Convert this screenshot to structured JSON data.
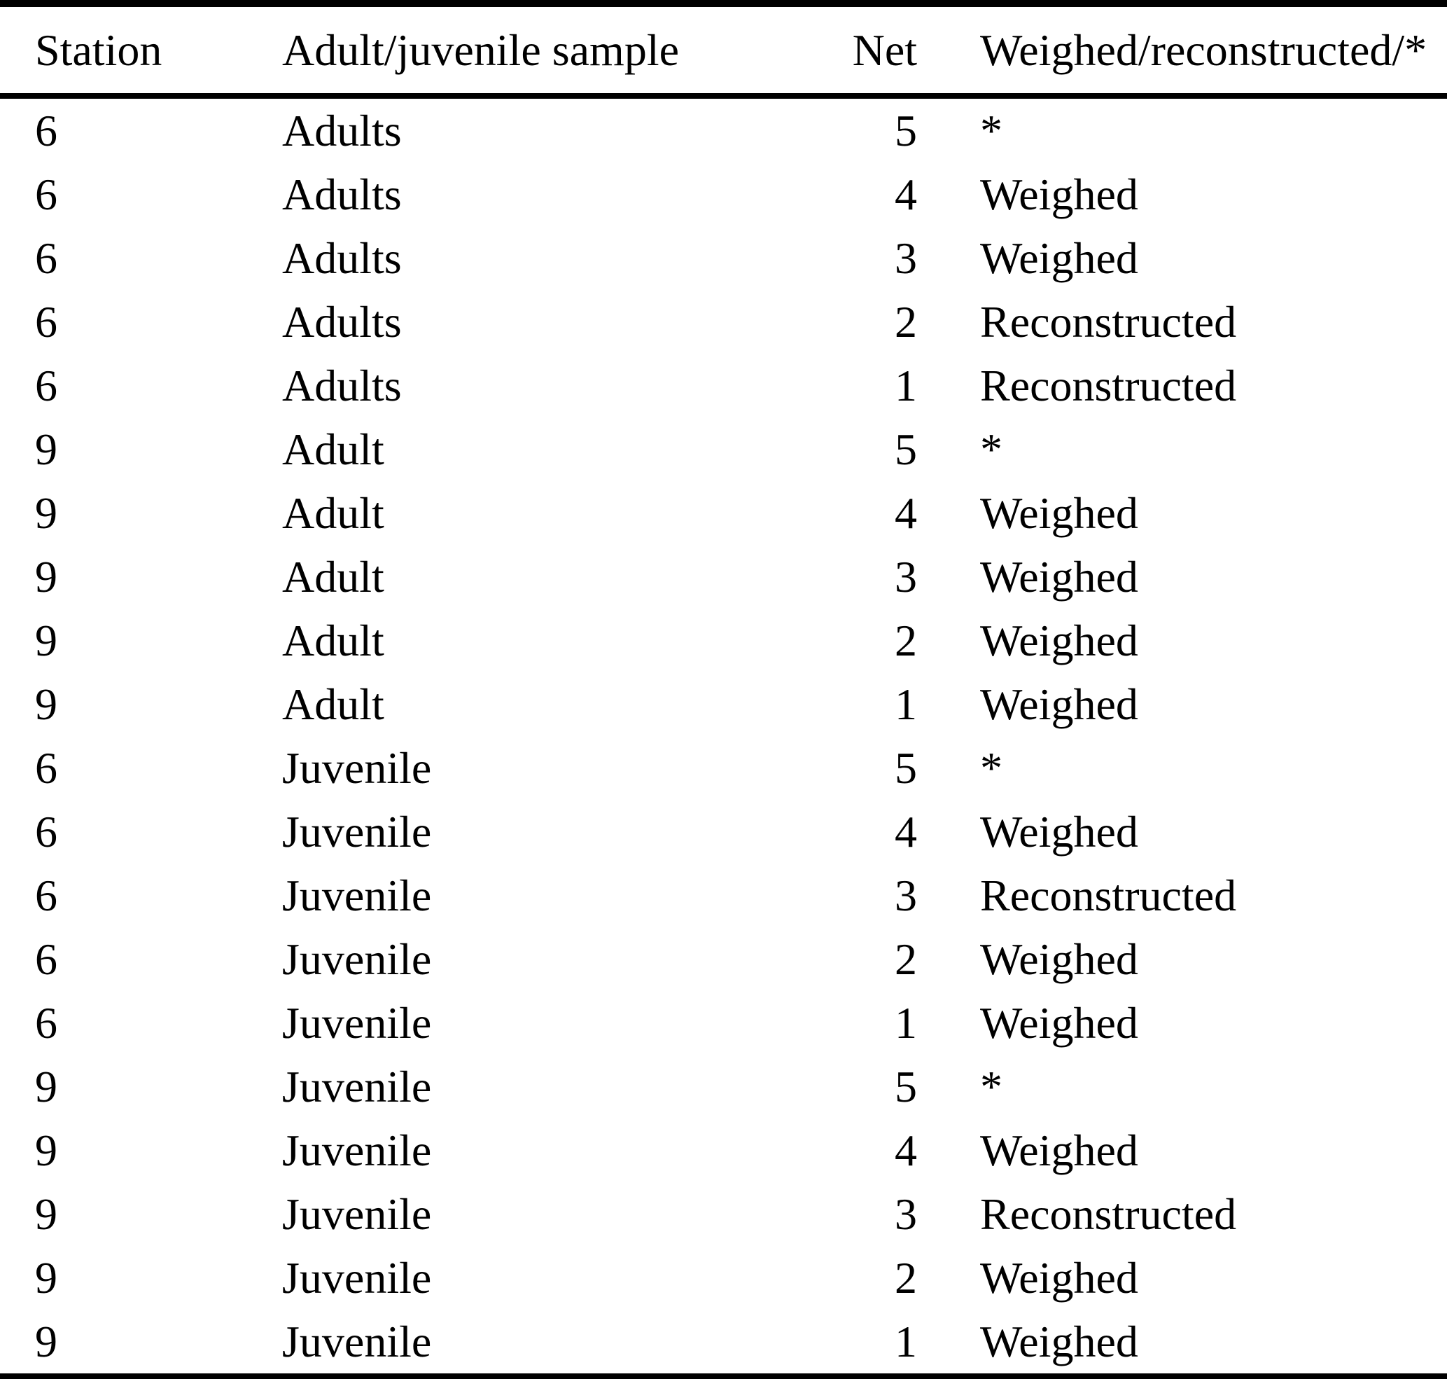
{
  "table": {
    "columns": [
      "Station",
      "Adult/juvenile sample",
      "Net",
      "Weighed/reconstructed/*"
    ],
    "rows": [
      [
        "6",
        "Adults",
        "5",
        "*"
      ],
      [
        "6",
        "Adults",
        "4",
        "Weighed"
      ],
      [
        "6",
        "Adults",
        "3",
        "Weighed"
      ],
      [
        "6",
        "Adults",
        "2",
        "Reconstructed"
      ],
      [
        "6",
        "Adults",
        "1",
        "Reconstructed"
      ],
      [
        "9",
        "Adult",
        "5",
        "*"
      ],
      [
        "9",
        "Adult",
        "4",
        "Weighed"
      ],
      [
        "9",
        "Adult",
        "3",
        "Weighed"
      ],
      [
        "9",
        "Adult",
        "2",
        "Weighed"
      ],
      [
        "9",
        "Adult",
        "1",
        "Weighed"
      ],
      [
        "6",
        "Juvenile",
        "5",
        "*"
      ],
      [
        "6",
        "Juvenile",
        "4",
        "Weighed"
      ],
      [
        "6",
        "Juvenile",
        "3",
        "Reconstructed"
      ],
      [
        "6",
        "Juvenile",
        "2",
        "Weighed"
      ],
      [
        "6",
        "Juvenile",
        "1",
        "Weighed"
      ],
      [
        "9",
        "Juvenile",
        "5",
        "*"
      ],
      [
        "9",
        "Juvenile",
        "4",
        "Weighed"
      ],
      [
        "9",
        "Juvenile",
        "3",
        "Reconstructed"
      ],
      [
        "9",
        "Juvenile",
        "2",
        "Weighed"
      ],
      [
        "9",
        "Juvenile",
        "1",
        "Weighed"
      ]
    ],
    "text_color": "#000000",
    "background_color": "#ffffff"
  }
}
